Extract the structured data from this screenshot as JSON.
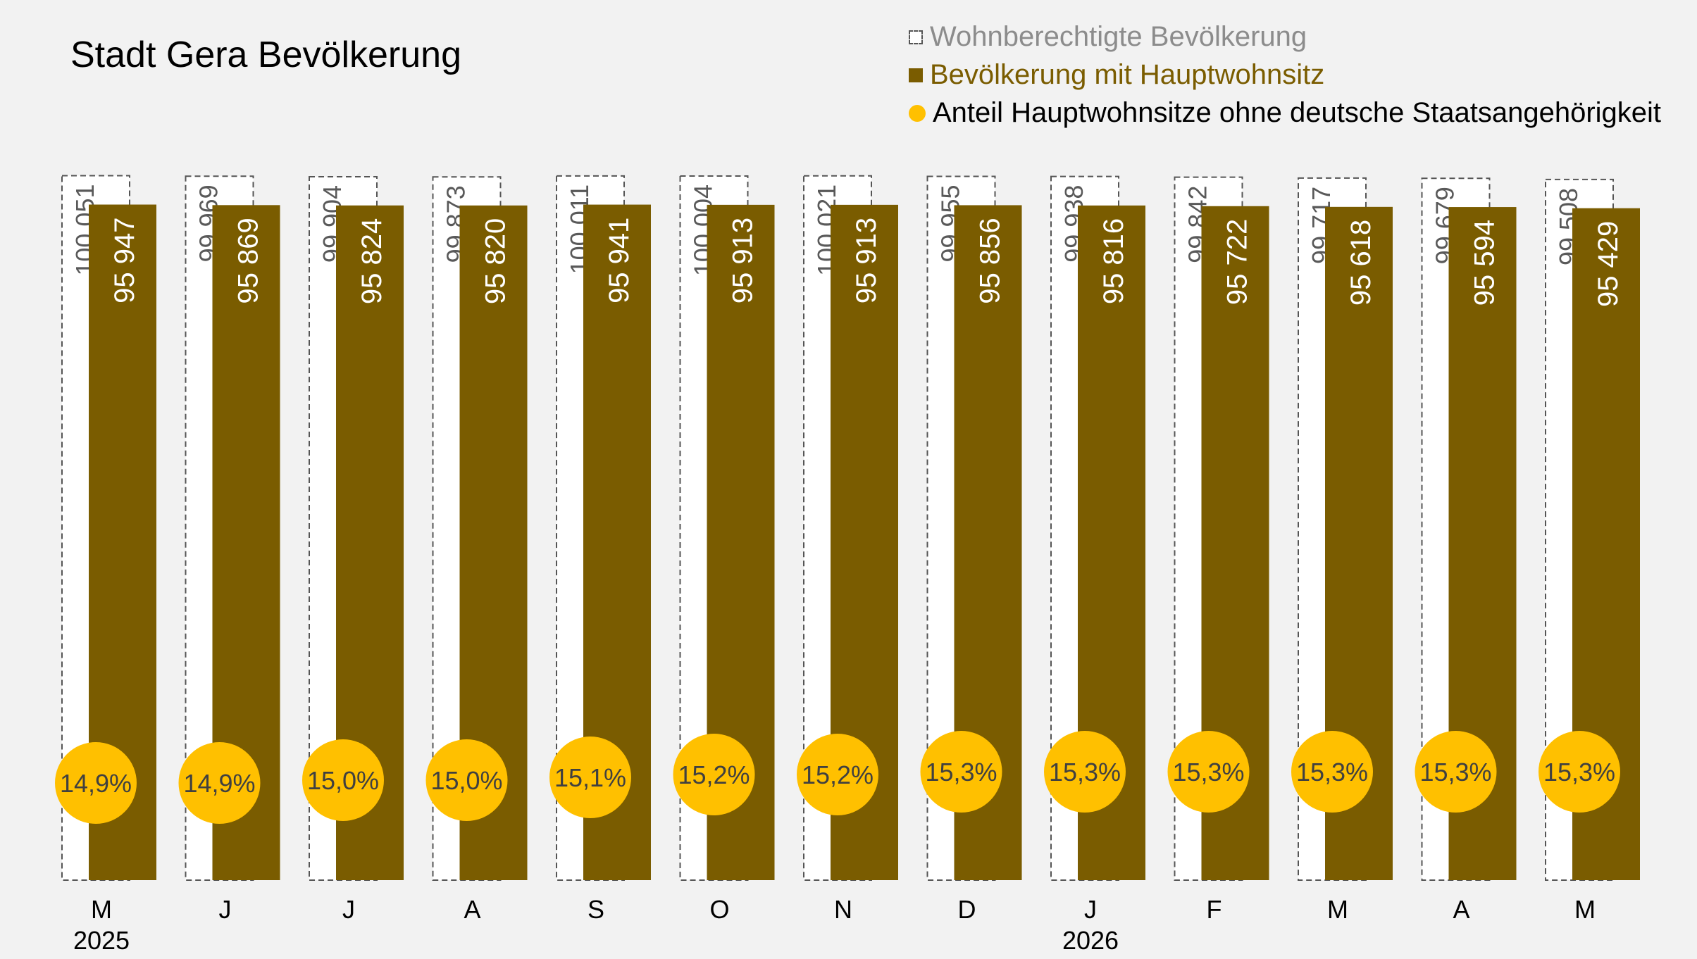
{
  "chart_data": {
    "type": "bar",
    "title": "Stadt Gera Bevölkerung",
    "categories": [
      "M",
      "J",
      "J",
      "A",
      "S",
      "O",
      "N",
      "D",
      "J",
      "F",
      "M",
      "A",
      "M"
    ],
    "years": [
      {
        "label": "2025",
        "index": 0
      },
      {
        "label": "2026",
        "index": 8
      }
    ],
    "series": [
      {
        "name": "Wohnberechtigte Bevölkerung",
        "values": [
          100051,
          99969,
          99904,
          99873,
          100011,
          100004,
          100021,
          99955,
          99938,
          99842,
          99717,
          99679,
          99508
        ]
      },
      {
        "name": "Bevölkerung mit Hauptwohnsitz",
        "values": [
          95947,
          95869,
          95824,
          95820,
          95941,
          95913,
          95913,
          95856,
          95816,
          95722,
          95618,
          95594,
          95429
        ]
      },
      {
        "name": "Anteil Hauptwohnsitze ohne deutsche Staatsangehörigkeit",
        "values": [
          14.9,
          14.9,
          15.0,
          15.0,
          15.1,
          15.2,
          15.2,
          15.3,
          15.3,
          15.3,
          15.3,
          15.3,
          15.3
        ]
      }
    ],
    "colors": {
      "outline": "#555555",
      "outline_fill": "#ffffff",
      "bar": "#7a5c00",
      "circle": "#ffc000",
      "background": "#f2f2f2"
    }
  }
}
